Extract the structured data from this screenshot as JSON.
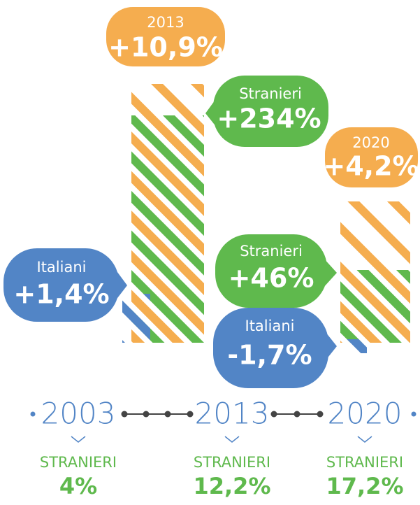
{
  "bubbles": [
    {
      "label": "2013",
      "value": "+10,9%"
    },
    {
      "label": "Stranieri",
      "value": "+234%"
    },
    {
      "label": "2020",
      "value": "+4,2%"
    },
    {
      "label": "Italiani",
      "value": "+1,4%"
    },
    {
      "label": "Stranieri",
      "value": "+46%"
    },
    {
      "label": "Italiani",
      "value": "-1,7%"
    }
  ],
  "timeline": [
    {
      "year": "2003",
      "label": "STRANIERI",
      "value": "4%"
    },
    {
      "year": "2013",
      "label": "STRANIERI",
      "value": "12,2%"
    },
    {
      "year": "2020",
      "label": "STRANIERI",
      "value": "17,2%"
    }
  ]
}
